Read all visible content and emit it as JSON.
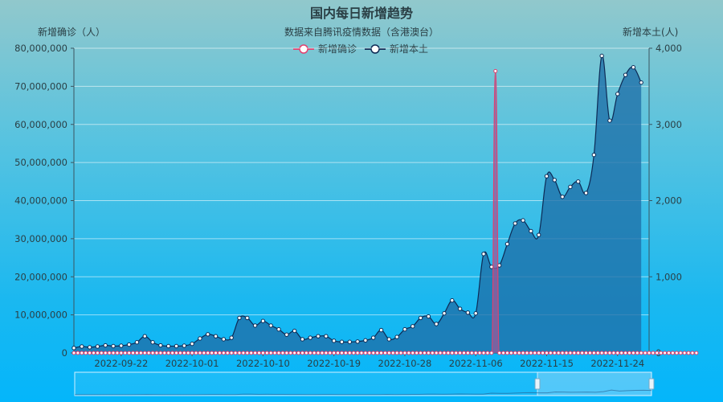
{
  "chart_data": {
    "type": "line",
    "title": "国内每日新增趋势",
    "subtitle": "数据来自腾讯疫情数据（含港澳台）",
    "ylabel_left": "新增确诊（人）",
    "ylabel_right": "新增本土(人)",
    "ylim_left": [
      0,
      80000000
    ],
    "ylim_right": [
      0,
      4000
    ],
    "y_ticks_left": [
      "80,000,000",
      "70,000,000",
      "60,000,000",
      "50,000,000",
      "40,000,000",
      "30,000,000",
      "20,000,000",
      "10,000,000",
      "0"
    ],
    "y_ticks_right": [
      "4,000",
      "3,000",
      "2,000",
      "1,000",
      "0"
    ],
    "x_ticks": [
      "2022-09-22",
      "2022-10-01",
      "2022-10-10",
      "2022-10-19",
      "2022-10-28",
      "2022-11-06",
      "2022-11-15",
      "2022-11-24"
    ],
    "x_range": [
      "2022-09-16",
      "2022-11-28"
    ],
    "legend_placement": "top-center",
    "grid": true,
    "series": [
      {
        "name": "新增确诊",
        "axis": "left",
        "color": "#e2406f",
        "values": [
          0,
          0,
          0,
          0,
          0,
          0,
          0,
          0,
          0,
          0,
          0,
          0,
          0,
          0,
          0,
          0,
          0,
          0,
          0,
          0,
          0,
          0,
          0,
          0,
          0,
          0,
          0,
          0,
          0,
          0,
          0,
          0,
          0,
          0,
          0,
          0,
          0,
          0,
          0,
          0,
          0,
          0,
          0,
          0,
          0,
          0,
          0,
          0,
          0,
          0,
          0,
          0,
          0,
          0,
          0,
          0,
          0,
          0,
          0,
          0,
          0,
          0,
          0,
          0,
          0,
          0,
          0,
          0,
          0,
          0,
          0,
          0,
          0,
          0,
          0,
          0,
          0,
          0,
          0,
          0,
          0,
          0,
          0,
          0,
          0,
          0,
          0,
          0,
          0,
          0,
          0,
          0,
          0,
          0,
          0,
          0,
          0,
          0,
          0,
          0,
          0,
          0,
          0,
          0,
          0,
          0,
          0,
          74000000,
          0,
          0,
          0,
          0,
          0,
          0,
          0,
          0,
          0,
          0,
          0,
          0,
          0,
          0,
          0,
          0,
          0,
          0,
          0,
          0,
          0,
          0,
          0,
          0,
          0,
          0,
          0,
          0,
          0,
          0,
          0,
          0,
          0,
          0,
          0,
          0,
          0,
          0,
          0,
          0,
          0,
          0,
          0,
          0,
          0,
          0,
          0,
          0,
          0,
          0,
          0
        ]
      },
      {
        "name": "新增本土",
        "axis": "right",
        "color": "#0d2a55",
        "values": [
          65,
          85,
          75,
          85,
          100,
          90,
          95,
          110,
          140,
          220,
          140,
          100,
          90,
          90,
          95,
          120,
          190,
          245,
          220,
          180,
          200,
          460,
          460,
          360,
          420,
          360,
          310,
          240,
          290,
          180,
          200,
          220,
          220,
          160,
          145,
          145,
          150,
          165,
          200,
          300,
          180,
          210,
          310,
          350,
          460,
          480,
          380,
          520,
          690,
          580,
          530,
          520,
          1300,
          1130,
          1150,
          1430,
          1700,
          1740,
          1600,
          1550,
          2320,
          2270,
          2050,
          2180,
          2250,
          2100,
          2600,
          3900,
          3050,
          3400,
          3650,
          3750,
          3550
        ]
      }
    ],
    "series_x": {
      "新增确诊_note": "",
      "local_x": [
        "2022-09-16",
        "2022-09-17",
        "2022-09-18",
        "2022-09-19",
        "2022-09-20",
        "2022-09-21",
        "2022-09-22",
        "2022-09-23",
        "2022-09-24",
        "2022-09-25",
        "2022-09-26",
        "2022-09-27",
        "2022-09-28",
        "2022-09-29",
        "2022-09-30",
        "2022-10-01",
        "2022-10-02",
        "2022-10-03",
        "2022-10-04",
        "2022-10-05",
        "2022-10-06",
        "2022-10-07",
        "2022-10-08",
        "2022-10-09",
        "2022-10-10",
        "2022-10-11",
        "2022-10-12",
        "2022-10-13",
        "2022-10-14",
        "2022-10-15",
        "2022-10-16",
        "2022-10-17",
        "2022-10-18",
        "2022-10-19",
        "2022-10-20",
        "2022-10-21",
        "2022-10-22",
        "2022-10-23",
        "2022-10-24",
        "2022-10-25",
        "2022-10-26",
        "2022-10-27",
        "2022-10-28",
        "2022-10-29",
        "2022-10-30",
        "2022-10-31",
        "2022-11-01",
        "2022-11-02",
        "2022-11-03",
        "2022-11-04",
        "2022-11-05",
        "2022-11-06",
        "2022-11-07",
        "2022-11-08",
        "2022-11-09",
        "2022-11-10",
        "2022-11-11",
        "2022-11-12",
        "2022-11-13",
        "2022-11-14",
        "2022-11-15",
        "2022-11-16",
        "2022-11-17",
        "2022-11-18",
        "2022-11-19",
        "2022-11-20",
        "2022-11-21",
        "2022-11-22",
        "2022-11-23",
        "2022-11-24",
        "2022-11-25",
        "2022-11-26",
        "2022-11-27"
      ]
    }
  },
  "colors": {
    "confirmed_line": "#e2406f",
    "local_line": "#0d2a55",
    "local_fill": "#1f6fa8",
    "axis": "#3a5560"
  }
}
